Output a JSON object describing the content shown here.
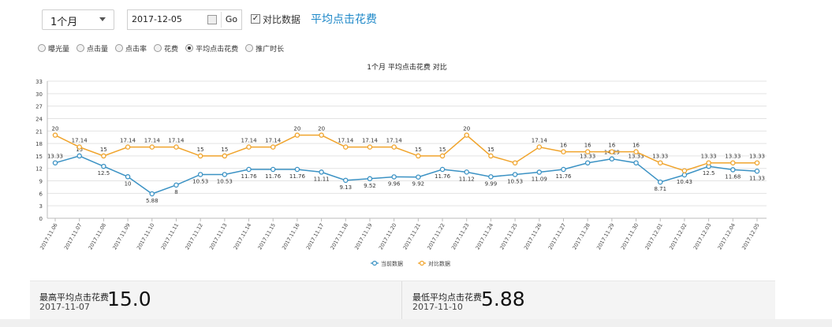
{
  "toolbar": {
    "period_select": "1个月",
    "date_value": "2017-12-05",
    "go_label": "Go",
    "compare_label": "对比数据",
    "metric_link": "平均点击花费"
  },
  "metrics": [
    {
      "label": "曝光量",
      "selected": false
    },
    {
      "label": "点击量",
      "selected": false
    },
    {
      "label": "点击率",
      "selected": false
    },
    {
      "label": "花费",
      "selected": false
    },
    {
      "label": "平均点击花费",
      "selected": true
    },
    {
      "label": "推广时长",
      "selected": false
    }
  ],
  "chart_data": {
    "type": "line",
    "title": "1个月  平均点击花费  对比",
    "ylim": [
      0,
      33
    ],
    "yticks": [
      0,
      3,
      6,
      9,
      12,
      15,
      18,
      21,
      24,
      27,
      30,
      33
    ],
    "grid": true,
    "legend_position": "bottom",
    "categories": [
      "2017.11.06",
      "2017.11.07",
      "2017.11.08",
      "2017.11.09",
      "2017.11.10",
      "2017.11.11",
      "2017.11.12",
      "2017.11.13",
      "2017.11.14",
      "2017.11.15",
      "2017.11.16",
      "2017.11.17",
      "2017.11.18",
      "2017.11.19",
      "2017.11.20",
      "2017.11.21",
      "2017.11.22",
      "2017.11.23",
      "2017.11.24",
      "2017.11.25",
      "2017.11.26",
      "2017.11.27",
      "2017.11.28",
      "2017.11.29",
      "2017.11.30",
      "2017.12.01",
      "2017.12.02",
      "2017.12.03",
      "2017.12.04",
      "2017.12.05"
    ],
    "series": [
      {
        "name": "当前数据",
        "color": "#3b92c4",
        "values": [
          13.33,
          15,
          12.5,
          10,
          5.88,
          8,
          10.53,
          10.53,
          11.76,
          11.76,
          11.76,
          11.11,
          9.13,
          9.52,
          9.96,
          9.92,
          11.76,
          11.12,
          9.99,
          10.53,
          11.09,
          11.76,
          13.33,
          14.29,
          13.33,
          8.71,
          10.43,
          12.5,
          11.68,
          11.33
        ],
        "labels": [
          "13.33",
          "15",
          "12.5",
          "10",
          "5.88",
          "8",
          "10.53",
          "10.53",
          "11.76",
          "11.76",
          "11.76",
          "11.11",
          "9.13",
          "9.52",
          "9.96",
          "9.92",
          "11.76",
          "11.12",
          "9.99",
          "10.53",
          "11.09",
          "11.76",
          "13.33",
          "14.29",
          "13.33",
          "8.71",
          "10.43",
          "12.5",
          "11.68",
          "11.33"
        ]
      },
      {
        "name": "对比数据",
        "color": "#f0a42c",
        "values": [
          20,
          17.14,
          15,
          17.14,
          17.14,
          17.14,
          15,
          15,
          17.14,
          17.14,
          20,
          20,
          17.14,
          17.14,
          17.14,
          15,
          15,
          20,
          15,
          13.33,
          17.14,
          16,
          16,
          16,
          16,
          13.33,
          11.43,
          13.33,
          13.33,
          13.33
        ],
        "labels": [
          "20",
          "17.14",
          "15",
          "17.14",
          "17.14",
          "17.14",
          "15",
          "15",
          "17.14",
          "17.14",
          "20",
          "20",
          "17.14",
          "17.14",
          "17.14",
          "15",
          "15",
          "20",
          "15",
          "",
          "17.14",
          "16",
          "16",
          "16",
          "16",
          "13.33",
          "",
          "13.33",
          "13.33",
          "13.33"
        ]
      }
    ]
  },
  "stats": {
    "max_title": "最高平均点击花费",
    "max_date": "2017-11-07",
    "max_value": "15.0",
    "min_title": "最低平均点击花费",
    "min_date": "2017-11-10",
    "min_value": "5.88"
  }
}
